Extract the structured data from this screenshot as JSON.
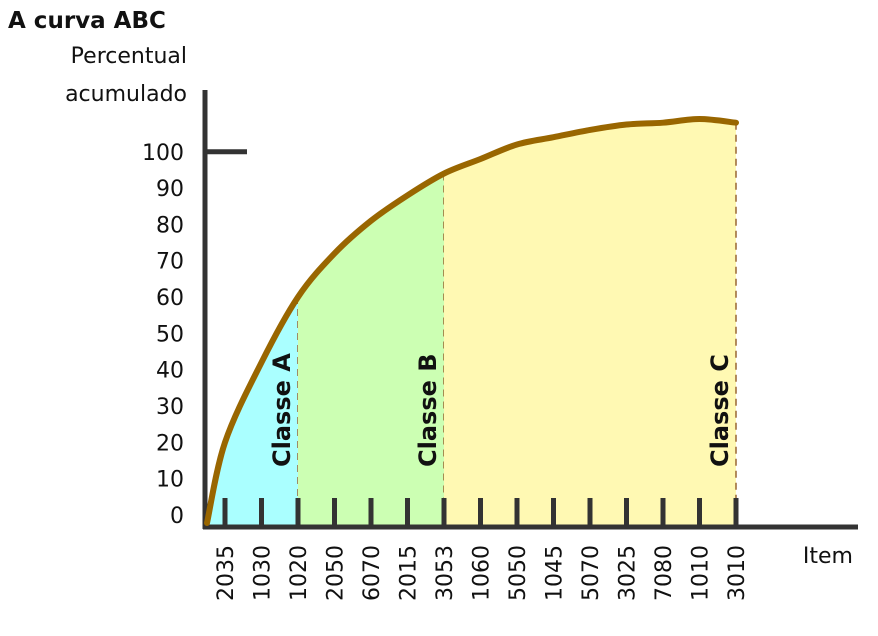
{
  "chart_data": {
    "type": "line",
    "title": "A curva ABC",
    "y_label": [
      "Percentual",
      "acumulado"
    ],
    "x_label": "Item",
    "categories": [
      "2035",
      "1030",
      "1020",
      "2050",
      "6070",
      "2015",
      "3053",
      "1060",
      "5050",
      "1045",
      "5070",
      "3025",
      "7080",
      "1010",
      "3010"
    ],
    "values": [
      20,
      42,
      60,
      72,
      81,
      88,
      94,
      98,
      102,
      104,
      106,
      107.5,
      108,
      109,
      108
    ],
    "color": "#996600",
    "ylim": [
      -3.3,
      117
    ],
    "yticks": [
      0,
      10,
      20,
      30,
      40,
      50,
      60,
      70,
      80,
      90,
      100
    ],
    "classes": [
      {
        "label": "Classe A",
        "last_item": "1020",
        "color": "#aaffff"
      },
      {
        "label": "Classe B",
        "last_item": "3053",
        "color": "#ccffb3"
      },
      {
        "label": "Classe C",
        "last_item": "3010",
        "color": "#fff9b3"
      }
    ]
  }
}
